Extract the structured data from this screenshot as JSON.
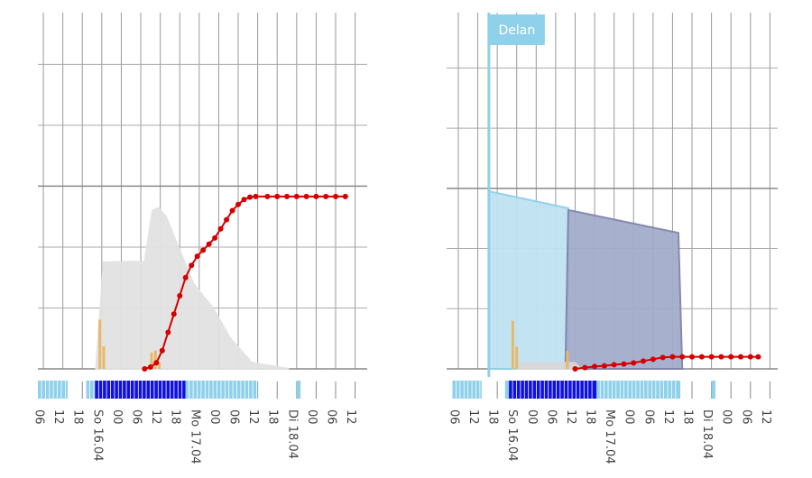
{
  "chart_data": [
    {
      "type": "combo",
      "xlim": [
        -0.28,
        16.62
      ],
      "ylim": [
        0,
        5.85
      ],
      "xticks": [
        {
          "value": 0,
          "label": "06"
        },
        {
          "value": 1,
          "label": "12"
        },
        {
          "value": 2,
          "label": "18"
        },
        {
          "value": 3,
          "label": "So 16.04"
        },
        {
          "value": 4,
          "label": "00"
        },
        {
          "value": 5,
          "label": "06"
        },
        {
          "value": 6,
          "label": "12"
        },
        {
          "value": 7,
          "label": "18"
        },
        {
          "value": 8,
          "label": "Mo 17.04"
        },
        {
          "value": 9,
          "label": "00"
        },
        {
          "value": 10,
          "label": "06"
        },
        {
          "value": 11,
          "label": "12"
        },
        {
          "value": 12,
          "label": "18"
        },
        {
          "value": 13,
          "label": "Di 18.04"
        },
        {
          "value": 14,
          "label": "00"
        },
        {
          "value": 15,
          "label": "06"
        },
        {
          "value": 16,
          "label": "12"
        }
      ],
      "yticks": [
        0,
        1,
        2,
        3,
        4,
        5
      ],
      "grid": true,
      "series": [
        {
          "kind": "area",
          "color": "#e2e2e2",
          "x": [
            2.7,
            3.1,
            5.2,
            5.6,
            5.9,
            6.3,
            6.8,
            7.7,
            8.7,
            9.6,
            10.7,
            12.6
          ],
          "values": [
            0,
            1.75,
            1.76,
            2.6,
            2.64,
            2.5,
            2.1,
            1.4,
            1.0,
            0.5,
            0.1,
            0
          ]
        },
        {
          "kind": "bar",
          "color": "#e8b868",
          "x": [
            2.9,
            3.1,
            5.55,
            5.75,
            5.95
          ],
          "values": [
            0.81,
            0.37,
            0.27,
            0.3,
            0.1
          ]
        },
        {
          "kind": "line",
          "color": "#d40000",
          "x": [
            5.2,
            5.5,
            5.8,
            6.1,
            6.4,
            6.7,
            7.0,
            7.3,
            7.6,
            7.9,
            8.2,
            8.5,
            8.8,
            9.1,
            9.4,
            9.7,
            10.0,
            10.3,
            10.6,
            10.9,
            11.5,
            12,
            12.5,
            13,
            13.5,
            14,
            14.5,
            15,
            15.5
          ],
          "values": [
            0,
            0.03,
            0.1,
            0.3,
            0.6,
            0.9,
            1.2,
            1.5,
            1.7,
            1.85,
            1.95,
            2.05,
            2.15,
            2.3,
            2.45,
            2.6,
            2.7,
            2.78,
            2.82,
            2.83,
            2.83,
            2.83,
            2.83,
            2.83,
            2.83,
            2.83,
            2.83,
            2.83,
            2.83
          ]
        }
      ],
      "strip": [
        {
          "start": -0.28,
          "end": 1.25,
          "color": "#8fd0ea"
        },
        {
          "start": 2.2,
          "end": 2.65,
          "color": "#8fd0ea"
        },
        {
          "start": 2.65,
          "end": 7.3,
          "color": "#1010e0"
        },
        {
          "start": 7.3,
          "end": 11.0,
          "color": "#8fd0ea"
        },
        {
          "start": 13.0,
          "end": 13.2,
          "color": "#8fd0ea"
        }
      ]
    },
    {
      "type": "combo",
      "xlim": [
        -0.6,
        16.4
      ],
      "ylim": [
        0,
        5.92
      ],
      "xticks": [
        {
          "value": 0,
          "label": "06"
        },
        {
          "value": 1,
          "label": "12"
        },
        {
          "value": 2,
          "label": "18"
        },
        {
          "value": 3,
          "label": "So 16.04"
        },
        {
          "value": 4,
          "label": "00"
        },
        {
          "value": 5,
          "label": "06"
        },
        {
          "value": 6,
          "label": "12"
        },
        {
          "value": 7,
          "label": "18"
        },
        {
          "value": 8,
          "label": "Mo 17.04"
        },
        {
          "value": 9,
          "label": "00"
        },
        {
          "value": 10,
          "label": "06"
        },
        {
          "value": 11,
          "label": "12"
        },
        {
          "value": 12,
          "label": "18"
        },
        {
          "value": 13,
          "label": "Di 18.04"
        },
        {
          "value": 14,
          "label": "00"
        },
        {
          "value": 15,
          "label": "06"
        },
        {
          "value": 16,
          "label": "12"
        }
      ],
      "yticks": [
        0,
        1,
        2,
        3,
        4,
        5
      ],
      "grid": true,
      "series": [
        {
          "kind": "area",
          "color": "#bfe3f2",
          "stroke": "#8fd0ea",
          "x": [
            1.57,
            1.57,
            5.65,
            5.65
          ],
          "values": [
            0,
            2.95,
            2.67,
            0
          ]
        },
        {
          "kind": "area",
          "color": "#a3acca",
          "stroke": "#7f83aa",
          "x": [
            5.5,
            5.65,
            11.3,
            11.5
          ],
          "values": [
            0,
            2.64,
            2.26,
            0
          ]
        },
        {
          "kind": "area",
          "color": "#d8d8d8",
          "x": [
            3.0,
            3.2,
            6.0,
            6.3
          ],
          "values": [
            0,
            0.1,
            0.1,
            0
          ]
        },
        {
          "kind": "bar",
          "color": "#e8b868",
          "x": [
            2.8,
            3.0,
            5.6
          ],
          "values": [
            0.8,
            0.37,
            0.3
          ]
        },
        {
          "kind": "line",
          "color": "#d40000",
          "x": [
            6.0,
            6.5,
            7,
            7.5,
            8,
            8.5,
            9,
            9.5,
            10,
            10.5,
            11,
            11.5,
            12,
            12.5,
            13,
            13.5,
            14,
            14.5,
            15,
            15.4
          ],
          "values": [
            0,
            0.02,
            0.04,
            0.05,
            0.07,
            0.08,
            0.1,
            0.13,
            0.16,
            0.19,
            0.2,
            0.2,
            0.2,
            0.2,
            0.2,
            0.2,
            0.2,
            0.2,
            0.2,
            0.2
          ]
        }
      ],
      "annotation": {
        "text": "Delan",
        "x": 1.57
      },
      "strip": [
        {
          "start": -0.3,
          "end": 1.2,
          "color": "#8fd0ea"
        },
        {
          "start": 2.4,
          "end": 2.6,
          "color": "#8fd0ea"
        },
        {
          "start": 2.6,
          "end": 7.1,
          "color": "#1010e0"
        },
        {
          "start": 7.1,
          "end": 11.4,
          "color": "#8fd0ea"
        },
        {
          "start": 13.0,
          "end": 13.2,
          "color": "#8fd0ea"
        }
      ]
    }
  ]
}
